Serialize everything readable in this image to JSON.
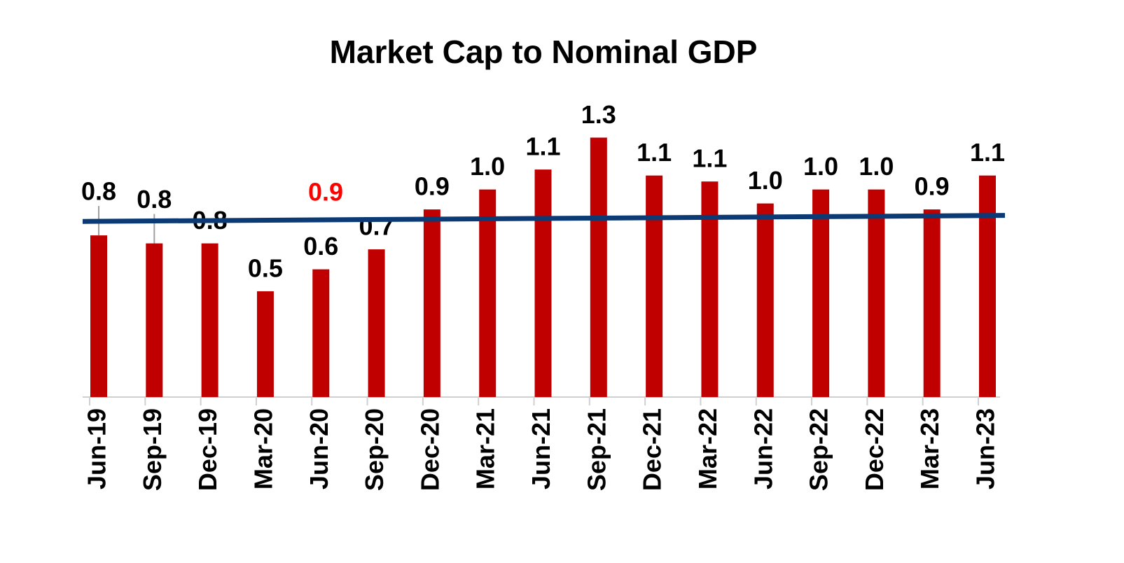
{
  "chart_data": {
    "type": "bar",
    "title": "Market Cap to Nominal GDP",
    "categories": [
      "Jun-19",
      "Sep-19",
      "Dec-19",
      "Mar-20",
      "Jun-20",
      "Sep-20",
      "Dec-20",
      "Mar-21",
      "Jun-21",
      "Sep-21",
      "Dec-21",
      "Mar-22",
      "Jun-22",
      "Sep-22",
      "Dec-22",
      "Mar-23",
      "Jun-23"
    ],
    "values": [
      0.81,
      0.77,
      0.77,
      0.53,
      0.64,
      0.74,
      0.94,
      1.04,
      1.14,
      1.3,
      1.11,
      1.08,
      0.97,
      1.04,
      1.04,
      0.94,
      1.11
    ],
    "value_labels": [
      "0.8",
      "0.8",
      "0.8",
      "0.5",
      "0.6",
      "0.7",
      "0.9",
      "1.0",
      "1.1",
      "1.3",
      "1.1",
      "1.1",
      "1.0",
      "1.0",
      "1.0",
      "0.9",
      "1.1"
    ],
    "color": "#c00000",
    "trendline": {
      "color": "#0b3a74",
      "values": [
        0.88,
        0.91
      ]
    },
    "annotations": [
      {
        "text": "0.9",
        "color": "#ff0000"
      }
    ]
  }
}
